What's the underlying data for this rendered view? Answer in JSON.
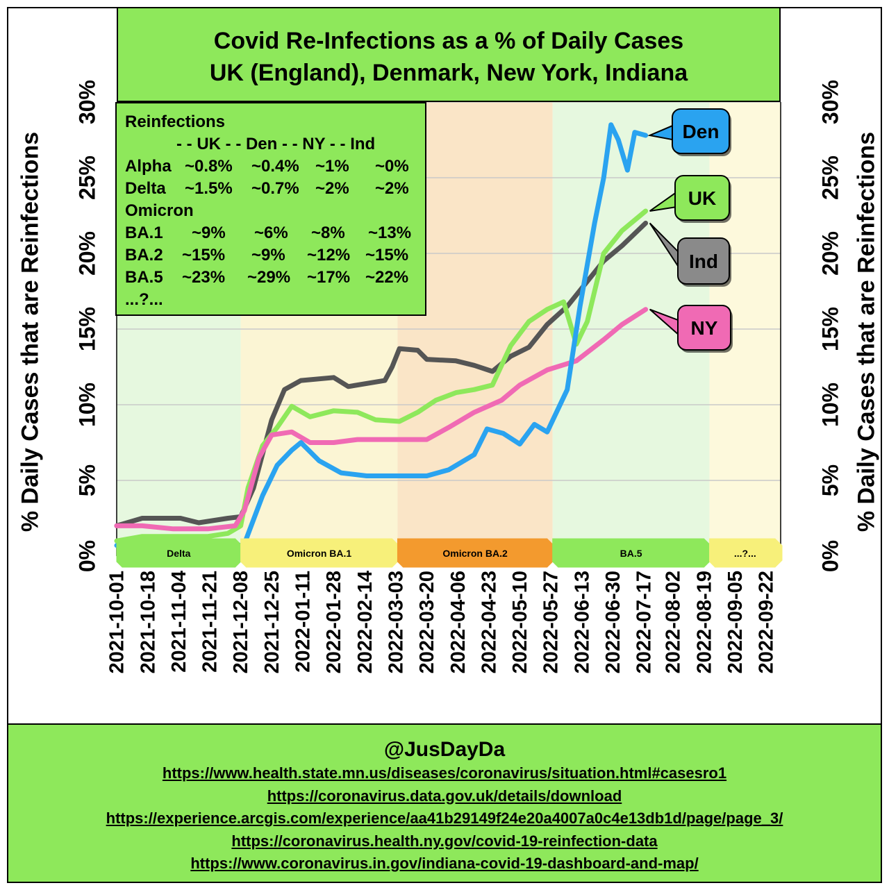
{
  "title": {
    "line1": "Covid Re-Infections as a % of Daily Cases",
    "line2": "UK (England), Denmark, New York, Indiana"
  },
  "ylabel_left": "% Daily Cases that are Reinfections",
  "ylabel_right": "% Daily Cases that are Reinfections",
  "reinfection_table": {
    "heading": "Reinfections",
    "columns_header": "- - UK - - Den - - NY - - Ind",
    "sections": [
      {
        "label": "Alpha",
        "values": [
          "~0.8%",
          "~0.4%",
          "~1%",
          "~0%"
        ]
      },
      {
        "label": "Delta",
        "values": [
          "~1.5%",
          "~0.7%",
          "~2%",
          "~2%"
        ]
      }
    ],
    "omicron_label": "Omicron",
    "omicron_rows": [
      {
        "label": "BA.1",
        "values": [
          "~9%",
          "~6%",
          "~8%",
          "~13%"
        ]
      },
      {
        "label": "BA.2",
        "values": [
          "~15%",
          "~9%",
          "~12%",
          "~15%"
        ]
      },
      {
        "label": "BA.5",
        "values": [
          "~23%",
          "~29%",
          "~17%",
          "~22%"
        ]
      }
    ],
    "trailing": "...?..."
  },
  "phases": [
    {
      "label": "Delta",
      "start": "2021-10-01",
      "end": "2021-12-08",
      "band_color": "#e6f8df",
      "tab_color": "#8ee85b"
    },
    {
      "label": "Omicron BA.1",
      "start": "2021-12-08",
      "end": "2022-03-04",
      "band_color": "#fbf5d4",
      "tab_color": "#f7f07a"
    },
    {
      "label": "Omicron BA.2",
      "start": "2022-03-04",
      "end": "2022-05-28",
      "band_color": "#fae5c7",
      "tab_color": "#f39a2e"
    },
    {
      "label": "BA.5",
      "start": "2022-05-28",
      "end": "2022-08-22",
      "band_color": "#e6f8df",
      "tab_color": "#8ee85b"
    },
    {
      "label": "...?...",
      "start": "2022-08-22",
      "end": "2022-09-30",
      "band_color": "#fdf9dc",
      "tab_color": "#f7f07a"
    }
  ],
  "callouts": [
    {
      "label": "Den",
      "color": "#2aa3f0"
    },
    {
      "label": "UK",
      "color": "#8ee85b"
    },
    {
      "label": "Ind",
      "color": "#8a8a8a"
    },
    {
      "label": "NY",
      "color": "#f06ab4"
    }
  ],
  "chart_data": {
    "type": "line",
    "title": "Covid Re-Infections as a % of Daily Cases",
    "ylabel": "% Daily Cases that are Reinfections",
    "xlabel": "",
    "y_unit": "%",
    "ylim": [
      0,
      31
    ],
    "yticks": [
      0,
      5,
      10,
      15,
      20,
      25,
      30
    ],
    "ytick_labels": [
      "0%",
      "5%",
      "10%",
      "15%",
      "20%",
      "25%",
      "30%"
    ],
    "xlim": [
      "2021-10-01",
      "2022-09-30"
    ],
    "xticks": [
      "2021-10-01",
      "2021-10-18",
      "2021-11-04",
      "2021-11-21",
      "2021-12-08",
      "2021-12-25",
      "2022-01-11",
      "2022-01-28",
      "2022-02-14",
      "2022-03-03",
      "2022-03-20",
      "2022-04-06",
      "2022-04-23",
      "2022-05-10",
      "2022-05-27",
      "2022-06-13",
      "2022-06-30",
      "2022-07-17",
      "2022-08-02",
      "2022-08-19",
      "2022-09-05",
      "2022-09-22"
    ],
    "grid": true,
    "series": [
      {
        "name": "Ind",
        "color": "#555555",
        "points": [
          [
            "2021-10-01",
            2.0
          ],
          [
            "2021-10-15",
            2.5
          ],
          [
            "2021-11-05",
            2.5
          ],
          [
            "2021-11-15",
            2.2
          ],
          [
            "2021-12-01",
            2.5
          ],
          [
            "2021-12-08",
            2.6
          ],
          [
            "2021-12-15",
            4.5
          ],
          [
            "2021-12-25",
            9.0
          ],
          [
            "2022-01-01",
            11.0
          ],
          [
            "2022-01-10",
            11.6
          ],
          [
            "2022-01-28",
            11.8
          ],
          [
            "2022-02-05",
            11.2
          ],
          [
            "2022-02-25",
            11.6
          ],
          [
            "2022-03-01",
            12.5
          ],
          [
            "2022-03-05",
            13.7
          ],
          [
            "2022-03-15",
            13.6
          ],
          [
            "2022-03-20",
            13.0
          ],
          [
            "2022-04-05",
            12.9
          ],
          [
            "2022-04-15",
            12.6
          ],
          [
            "2022-04-25",
            12.2
          ],
          [
            "2022-05-05",
            13.2
          ],
          [
            "2022-05-15",
            13.8
          ],
          [
            "2022-05-25",
            15.3
          ],
          [
            "2022-06-05",
            16.5
          ],
          [
            "2022-06-15",
            18.0
          ],
          [
            "2022-06-25",
            19.5
          ],
          [
            "2022-07-05",
            20.5
          ],
          [
            "2022-07-18",
            22.0
          ]
        ]
      },
      {
        "name": "UK",
        "color": "#8ee85b",
        "points": [
          [
            "2021-10-01",
            1.0
          ],
          [
            "2021-10-15",
            1.3
          ],
          [
            "2021-11-05",
            1.3
          ],
          [
            "2021-11-20",
            1.3
          ],
          [
            "2021-12-01",
            1.5
          ],
          [
            "2021-12-08",
            2.0
          ],
          [
            "2021-12-12",
            4.5
          ],
          [
            "2021-12-20",
            7.3
          ],
          [
            "2021-12-28",
            8.5
          ],
          [
            "2022-01-05",
            9.9
          ],
          [
            "2022-01-15",
            9.2
          ],
          [
            "2022-01-28",
            9.6
          ],
          [
            "2022-02-10",
            9.5
          ],
          [
            "2022-02-20",
            9.0
          ],
          [
            "2022-03-05",
            8.9
          ],
          [
            "2022-03-15",
            9.5
          ],
          [
            "2022-03-25",
            10.3
          ],
          [
            "2022-04-05",
            10.8
          ],
          [
            "2022-04-15",
            11.0
          ],
          [
            "2022-04-25",
            11.3
          ],
          [
            "2022-05-05",
            13.9
          ],
          [
            "2022-05-15",
            15.5
          ],
          [
            "2022-05-25",
            16.3
          ],
          [
            "2022-06-03",
            16.8
          ],
          [
            "2022-06-10",
            14.0
          ],
          [
            "2022-06-16",
            15.5
          ],
          [
            "2022-06-25",
            20.0
          ],
          [
            "2022-07-05",
            21.5
          ],
          [
            "2022-07-18",
            22.8
          ]
        ]
      },
      {
        "name": "NY",
        "color": "#f06ab4",
        "points": [
          [
            "2021-10-01",
            2.0
          ],
          [
            "2021-10-15",
            2.0
          ],
          [
            "2021-11-01",
            1.8
          ],
          [
            "2021-11-20",
            1.8
          ],
          [
            "2021-12-05",
            2.0
          ],
          [
            "2021-12-10",
            3.0
          ],
          [
            "2021-12-18",
            6.5
          ],
          [
            "2021-12-25",
            8.0
          ],
          [
            "2022-01-05",
            8.2
          ],
          [
            "2022-01-15",
            7.5
          ],
          [
            "2022-01-28",
            7.5
          ],
          [
            "2022-02-10",
            7.7
          ],
          [
            "2022-02-20",
            7.7
          ],
          [
            "2022-03-05",
            7.7
          ],
          [
            "2022-03-20",
            7.7
          ],
          [
            "2022-04-01",
            8.5
          ],
          [
            "2022-04-15",
            9.5
          ],
          [
            "2022-04-30",
            10.3
          ],
          [
            "2022-05-10",
            11.3
          ],
          [
            "2022-05-25",
            12.3
          ],
          [
            "2022-06-10",
            12.9
          ],
          [
            "2022-06-25",
            14.3
          ],
          [
            "2022-07-05",
            15.3
          ],
          [
            "2022-07-18",
            16.3
          ]
        ]
      },
      {
        "name": "Den",
        "color": "#2aa3f0",
        "points": [
          [
            "2021-10-01",
            0.7
          ],
          [
            "2021-10-15",
            0.7
          ],
          [
            "2021-11-01",
            0.6
          ],
          [
            "2021-11-20",
            0.6
          ],
          [
            "2021-12-05",
            0.6
          ],
          [
            "2021-12-10",
            0.8
          ],
          [
            "2021-12-20",
            4.0
          ],
          [
            "2021-12-28",
            6.0
          ],
          [
            "2022-01-05",
            7.0
          ],
          [
            "2022-01-10",
            7.5
          ],
          [
            "2022-01-20",
            6.3
          ],
          [
            "2022-02-01",
            5.5
          ],
          [
            "2022-02-15",
            5.3
          ],
          [
            "2022-03-05",
            5.3
          ],
          [
            "2022-03-20",
            5.3
          ],
          [
            "2022-04-01",
            5.7
          ],
          [
            "2022-04-15",
            6.7
          ],
          [
            "2022-04-22",
            8.4
          ],
          [
            "2022-05-01",
            8.1
          ],
          [
            "2022-05-10",
            7.4
          ],
          [
            "2022-05-18",
            8.7
          ],
          [
            "2022-05-25",
            8.2
          ],
          [
            "2022-06-05",
            11.0
          ],
          [
            "2022-06-12",
            16.5
          ],
          [
            "2022-06-20",
            22.0
          ],
          [
            "2022-06-25",
            25.0
          ],
          [
            "2022-06-29",
            28.5
          ],
          [
            "2022-07-03",
            27.5
          ],
          [
            "2022-07-08",
            25.5
          ],
          [
            "2022-07-12",
            28.0
          ],
          [
            "2022-07-18",
            27.8
          ]
        ]
      }
    ]
  },
  "footer": {
    "handle": "@JusDayDa",
    "links": [
      "https://www.health.state.mn.us/diseases/coronavirus/situation.html#casesro1",
      "https://coronavirus.data.gov.uk/details/download",
      "https://experience.arcgis.com/experience/aa41b29149f24e20a4007a0c4e13db1d/page/page_3/",
      "https://coronavirus.health.ny.gov/covid-19-reinfection-data",
      "https://www.coronavirus.in.gov/indiana-covid-19-dashboard-and-map/"
    ]
  }
}
